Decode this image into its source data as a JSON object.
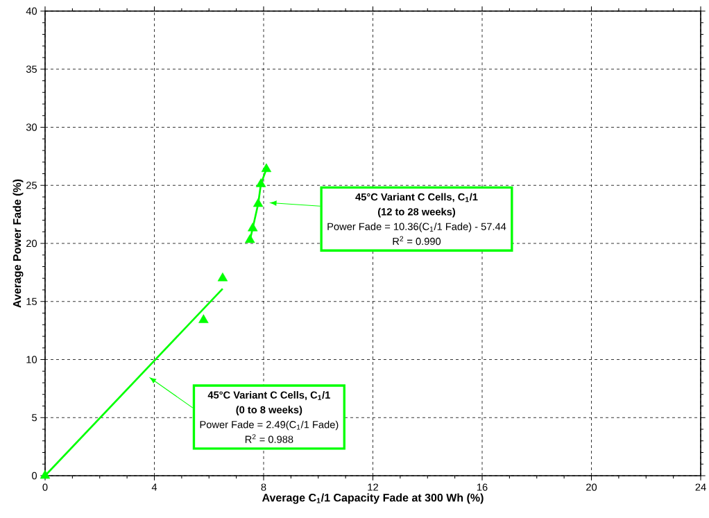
{
  "chart_data": {
    "type": "scatter",
    "xlabel": "Average C$_{1}$/1 Capacity Fade at 300 Wh (%)",
    "ylabel": "Average Power Fade (%)",
    "xlim": [
      0,
      24
    ],
    "xticks": [
      0,
      4,
      8,
      12,
      16,
      20,
      24
    ],
    "ylim": [
      0,
      40
    ],
    "yticks": [
      0,
      5,
      10,
      15,
      20,
      25,
      30,
      35,
      40
    ],
    "grid": true,
    "marker": "triangle",
    "series": [
      {
        "color": "#00ff00",
        "x": [
          0,
          5.8,
          6.5,
          7.5,
          7.6,
          7.8,
          7.9,
          8.1
        ],
        "values": [
          0,
          13.4,
          17.0,
          20.3,
          21.3,
          23.4,
          25.1,
          26.4
        ]
      },
      {
        "type": "line",
        "color": "#00ff00",
        "marker": "none",
        "x": [
          0,
          6.5
        ],
        "values": [
          0,
          16.1
        ]
      },
      {
        "type": "line",
        "color": "#00ff00",
        "marker": "none",
        "x": [
          7.5,
          7.6,
          7.8,
          7.9,
          8.1
        ],
        "values": [
          20.3,
          21.3,
          23.4,
          25.1,
          26.4
        ]
      }
    ],
    "annotations": [
      "45°C Variant C Cells, C$_{1}$/1",
      "(12 to 28 weeks)",
      "Power Fade = 10.36(C$_{1}$/1 Fade) - 57.44",
      "R$^{2}$ = 0.990",
      "45°C Variant C Cells, C$_{1}$/1",
      "(0 to 8 weeks)",
      "Power Fade = 2.49(C$_{1}$/1 Fade)",
      "R$^{2}$ = 0.988"
    ]
  }
}
